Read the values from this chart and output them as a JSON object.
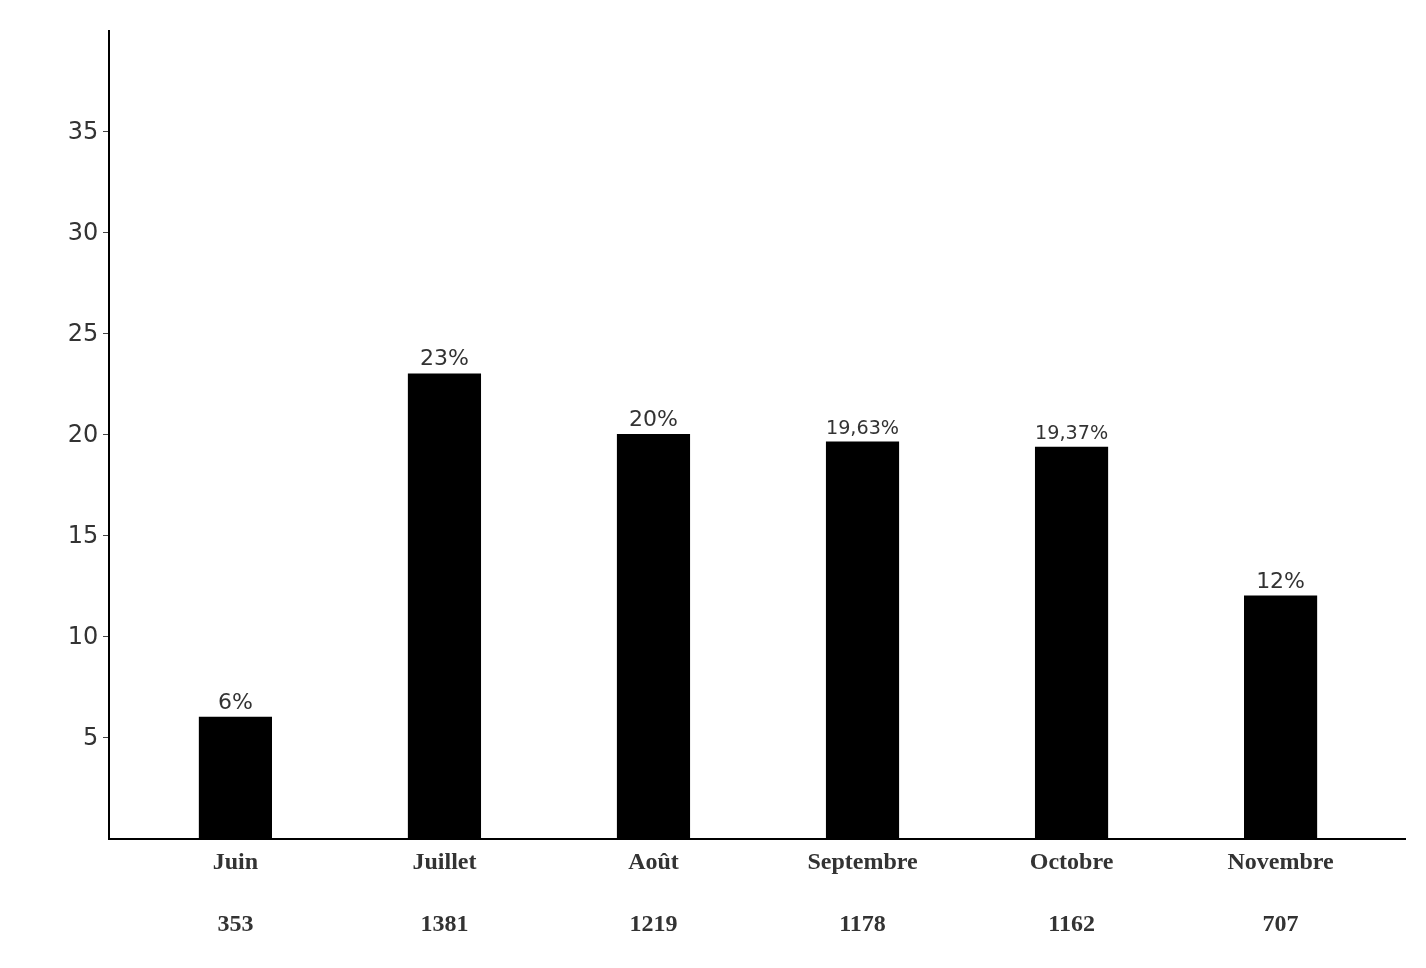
{
  "chart_data": {
    "type": "bar",
    "categories": [
      "Juin\n353",
      "Juillet\n1381",
      "Août\n1219",
      "Septembre\n1178",
      "Octobre\n1162",
      "Novembre\n707"
    ],
    "values": [
      6,
      23,
      20,
      19.63,
      19.37,
      12
    ],
    "value_labels": [
      "6%",
      "23%",
      "20%",
      "19,63%",
      "19,37%",
      "12%"
    ],
    "color": "#000000",
    "ylim": [
      0,
      40
    ],
    "yticks": [
      5,
      10,
      15,
      20,
      25,
      30,
      35
    ],
    "legend": false
  }
}
